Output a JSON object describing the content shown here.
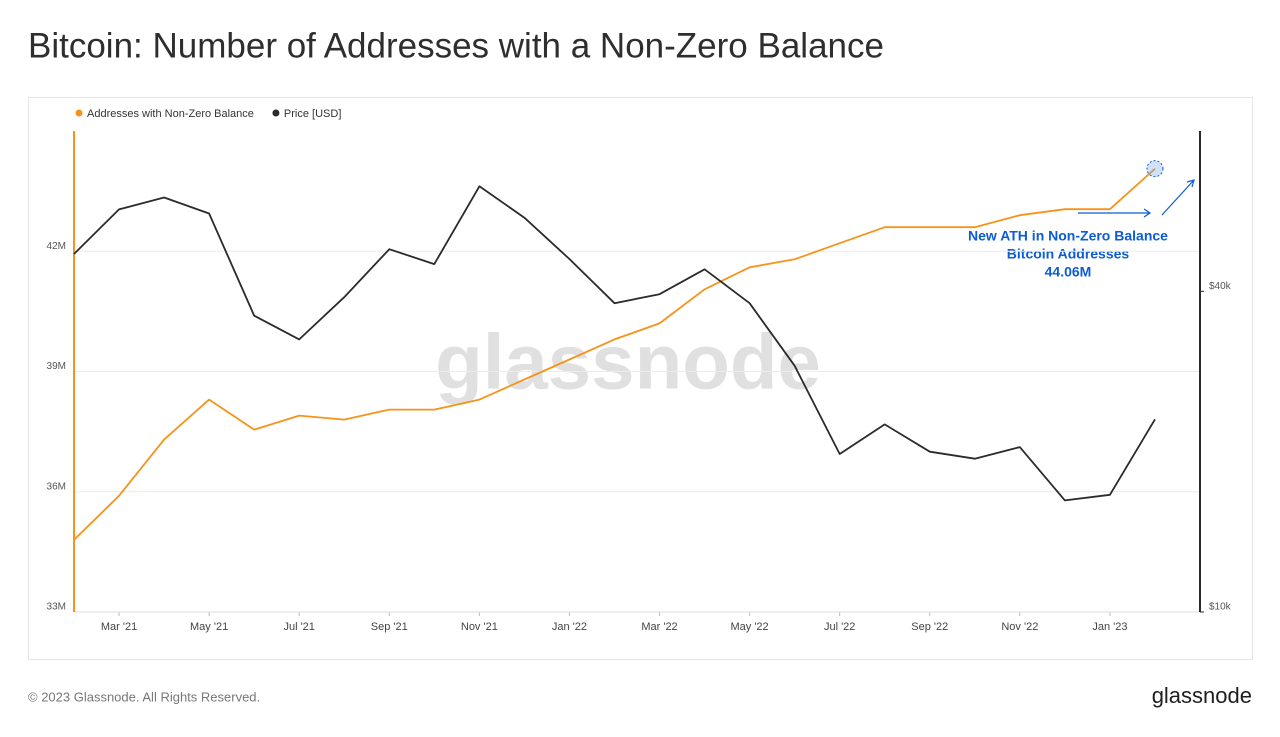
{
  "chart_data": {
    "type": "line",
    "title": "Bitcoin: Number of Addresses with a Non-Zero Balance",
    "watermark": "glassnode",
    "footer": "© 2023 Glassnode. All Rights Reserved.",
    "brand": "glassnode",
    "annotation": [
      "New ATH in Non-Zero Balance",
      "Bitcoin Addresses",
      "44.06M"
    ],
    "x": [
      "2021-02",
      "2021-03",
      "2021-04",
      "2021-05",
      "2021-06",
      "2021-07",
      "2021-08",
      "2021-09",
      "2021-10",
      "2021-11",
      "2021-12",
      "2022-01",
      "2022-02",
      "2022-03",
      "2022-04",
      "2022-05",
      "2022-06",
      "2022-07",
      "2022-08",
      "2022-09",
      "2022-10",
      "2022-11",
      "2022-12",
      "2023-01",
      "2023-02"
    ],
    "xlim": [
      "2021-02",
      "2023-03"
    ],
    "xticks": [
      {
        "value": "2021-03",
        "label": "Mar '21"
      },
      {
        "value": "2021-05",
        "label": "May '21"
      },
      {
        "value": "2021-07",
        "label": "Jul '21"
      },
      {
        "value": "2021-09",
        "label": "Sep '21"
      },
      {
        "value": "2021-11",
        "label": "Nov '21"
      },
      {
        "value": "2022-01",
        "label": "Jan '22"
      },
      {
        "value": "2022-03",
        "label": "Mar '22"
      },
      {
        "value": "2022-05",
        "label": "May '22"
      },
      {
        "value": "2022-07",
        "label": "Jul '22"
      },
      {
        "value": "2022-09",
        "label": "Sep '22"
      },
      {
        "value": "2022-11",
        "label": "Nov '22"
      },
      {
        "value": "2023-01",
        "label": "Jan '23"
      }
    ],
    "ylim": [
      33,
      45
    ],
    "yticks": [
      {
        "value": 33,
        "label": "33M"
      },
      {
        "value": 36,
        "label": "36M"
      },
      {
        "value": 39,
        "label": "39M"
      },
      {
        "value": 42,
        "label": "42M"
      }
    ],
    "y2lim": [
      10000,
      80000
    ],
    "y2ticks": [
      {
        "value": 10000,
        "label": "$10k"
      },
      {
        "value": 40000,
        "label": "$40k"
      }
    ],
    "y2scale": "log",
    "grid": true,
    "legend": "top-left",
    "series": [
      {
        "name": "Addresses with Non-Zero Balance",
        "color": "#f7931a",
        "values": [
          34.8,
          35.9,
          37.3,
          38.3,
          37.55,
          37.9,
          37.8,
          38.05,
          38.05,
          38.3,
          38.8,
          39.3,
          39.8,
          40.2,
          41.05,
          41.6,
          41.8,
          42.2,
          42.6,
          42.6,
          42.6,
          42.9,
          43.05,
          43.05,
          44.06
        ]
      },
      {
        "name": "Price [USD]",
        "color": "#2b2b2b",
        "axis": "y2",
        "values": [
          47000,
          57000,
          60000,
          56000,
          36000,
          32500,
          39000,
          48000,
          45000,
          63000,
          55000,
          46000,
          38000,
          39500,
          44000,
          38000,
          29000,
          19800,
          22500,
          20000,
          19400,
          20400,
          16200,
          16600,
          23000
        ]
      }
    ]
  }
}
